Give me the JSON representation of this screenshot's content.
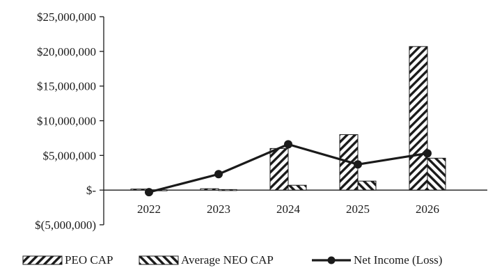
{
  "chart_data": {
    "type": "bar",
    "categories": [
      "2022",
      "2023",
      "2024",
      "2025",
      "2026"
    ],
    "series": [
      {
        "name": "PEO CAP",
        "kind": "bar",
        "pattern": "forward-hatch",
        "values": [
          150000,
          200000,
          6000000,
          8000000,
          20700000
        ]
      },
      {
        "name": "Average NEO CAP",
        "kind": "bar",
        "pattern": "back-hatch",
        "values": [
          50000,
          80000,
          700000,
          1300000,
          4600000
        ]
      },
      {
        "name": "Net Income (Loss)",
        "kind": "line",
        "marker": "circle",
        "values": [
          -300000,
          2300000,
          6600000,
          3700000,
          5300000
        ]
      }
    ],
    "ylim": [
      -5000000,
      25000000
    ],
    "yticks": [
      -5000000,
      0,
      5000000,
      10000000,
      15000000,
      20000000,
      25000000
    ],
    "ytick_labels": [
      "$(5,000,000)",
      "$-",
      "$5,000,000",
      "$10,000,000",
      "$15,000,000",
      "$20,000,000",
      "$25,000,000"
    ],
    "title": "",
    "xlabel": "",
    "ylabel": "",
    "grid": false,
    "legend_position": "bottom",
    "colors": {
      "ink": "#1a1a1a",
      "background": "#ffffff"
    }
  }
}
